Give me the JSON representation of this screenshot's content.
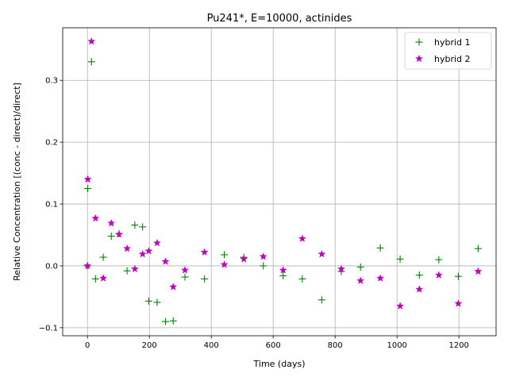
{
  "chart_data": {
    "type": "scatter",
    "title": "Pu241*, E=10000, actinides",
    "xlabel": "Time (days)",
    "ylabel": "Relative Concentration [(conc - direct)/direct]",
    "xlim": [
      -80,
      1320
    ],
    "ylim": [
      -0.113,
      0.385
    ],
    "xticks": [
      0,
      200,
      400,
      600,
      800,
      1000,
      1200
    ],
    "xtick_labels": [
      "0",
      "200",
      "400",
      "600",
      "800",
      "1000",
      "1200"
    ],
    "yticks": [
      -0.1,
      0.0,
      0.1,
      0.2,
      0.3
    ],
    "ytick_labels": [
      "−0.1",
      "0.0",
      "0.1",
      "0.2",
      "0.3"
    ],
    "grid": true,
    "legend_position": "top-right",
    "series": [
      {
        "name": "hybrid 1",
        "marker": "plus",
        "color": "#008000",
        "x": [
          0,
          1,
          13,
          26,
          51,
          77,
          102,
          128,
          153,
          178,
          198,
          225,
          252,
          277,
          315,
          378,
          442,
          505,
          568,
          632,
          694,
          757,
          820,
          882,
          946,
          1010,
          1072,
          1135,
          1198,
          1262
        ],
        "y": [
          0.0,
          0.125,
          0.33,
          -0.021,
          0.014,
          0.048,
          0.052,
          -0.008,
          0.066,
          0.063,
          -0.057,
          -0.059,
          -0.09,
          -0.089,
          -0.018,
          -0.021,
          0.018,
          0.014,
          0.0,
          -0.016,
          -0.021,
          -0.055,
          -0.009,
          -0.002,
          0.029,
          0.011,
          -0.015,
          0.01,
          -0.017,
          0.028
        ]
      },
      {
        "name": "hybrid 2",
        "marker": "star",
        "color": "#bf00bf",
        "x": [
          0,
          1,
          13,
          26,
          51,
          77,
          102,
          128,
          153,
          178,
          198,
          225,
          252,
          277,
          315,
          378,
          442,
          505,
          568,
          632,
          694,
          757,
          820,
          882,
          946,
          1010,
          1072,
          1135,
          1198,
          1262
        ],
        "y": [
          0.0,
          0.14,
          0.363,
          0.077,
          -0.02,
          0.069,
          0.051,
          0.028,
          -0.005,
          0.019,
          0.024,
          0.037,
          0.007,
          -0.034,
          -0.007,
          0.022,
          0.002,
          0.011,
          0.015,
          -0.007,
          0.044,
          0.019,
          -0.005,
          -0.024,
          -0.02,
          -0.065,
          -0.038,
          -0.015,
          -0.061,
          -0.009
        ]
      }
    ]
  }
}
